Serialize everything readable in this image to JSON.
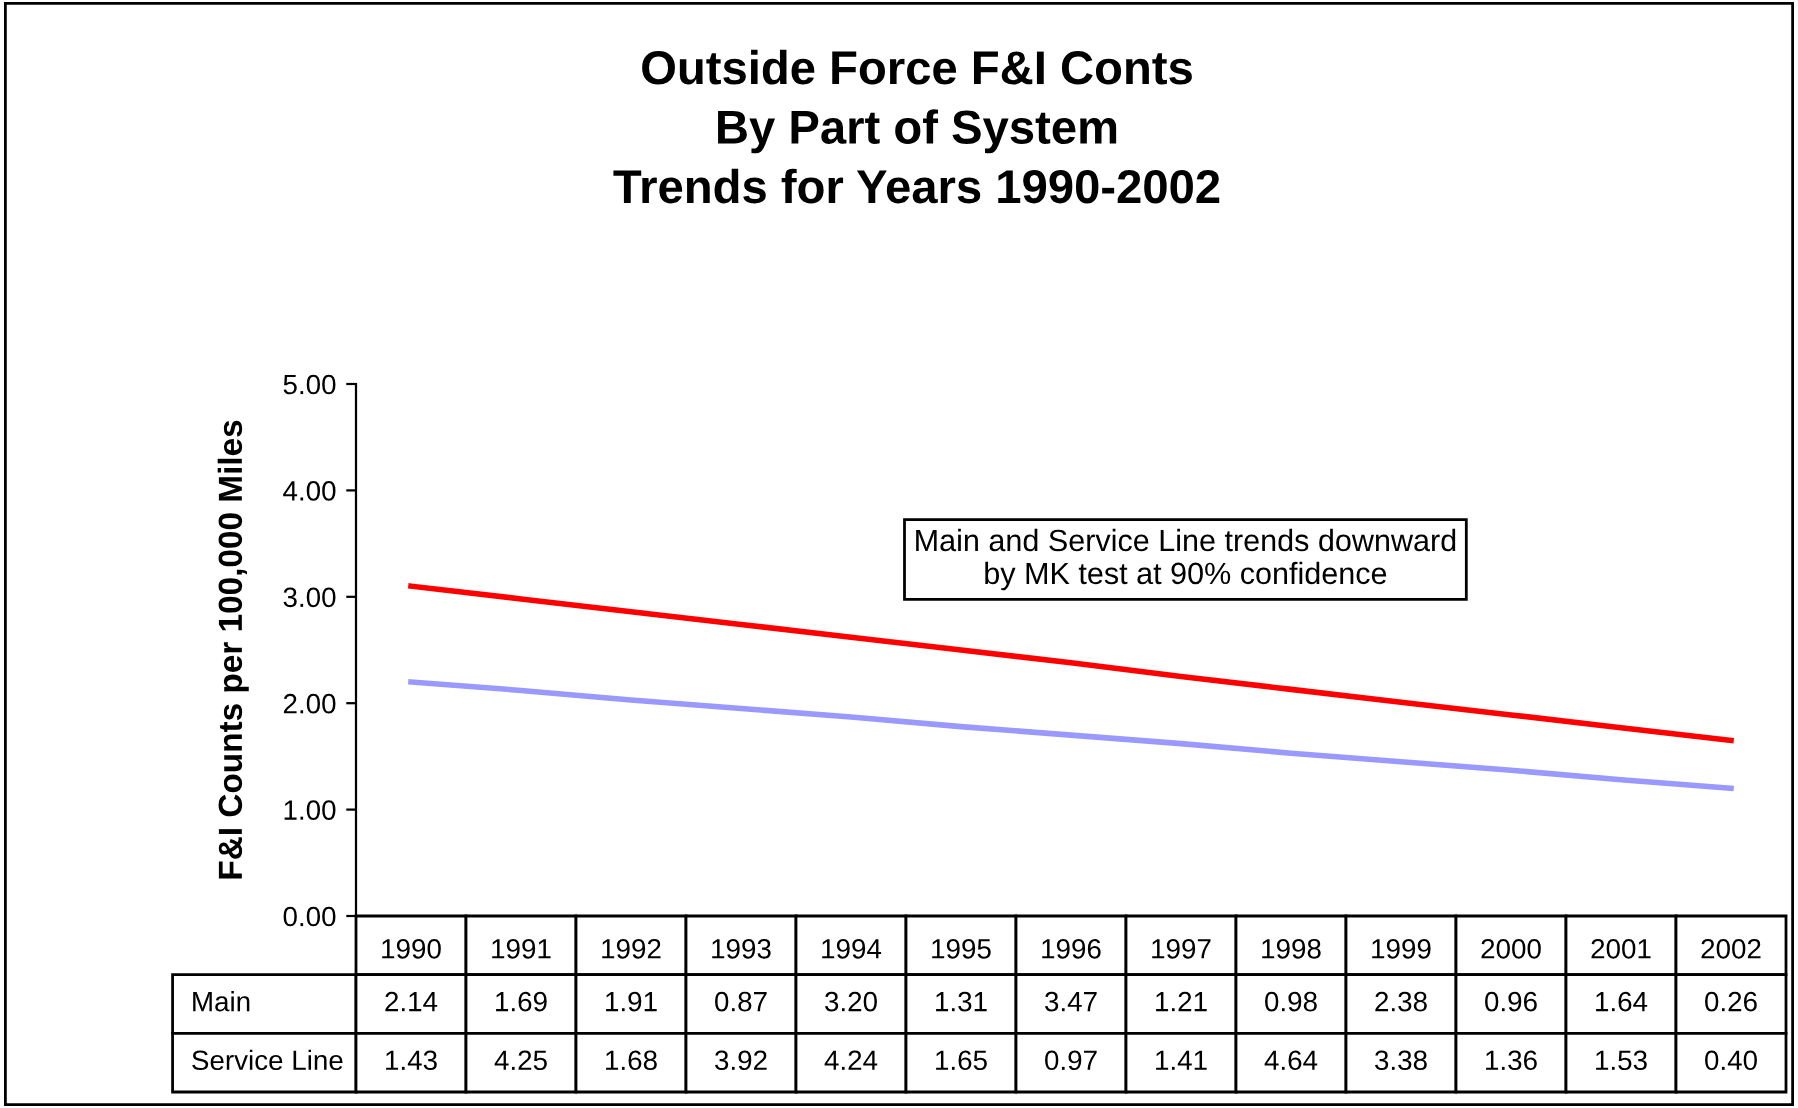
{
  "chart_data": {
    "type": "line",
    "title": "Outside Force F&I Conts\nBy Part of System\nTrends for Years 1990-2002",
    "ylabel": "F&I Counts per 100,000 Miles",
    "categories": [
      "1990",
      "1991",
      "1992",
      "1993",
      "1994",
      "1995",
      "1996",
      "1997",
      "1998",
      "1999",
      "2000",
      "2001",
      "2002"
    ],
    "series": [
      {
        "color": "#ff0000",
        "values": [
          3.1,
          2.98,
          2.86,
          2.74,
          2.62,
          2.5,
          2.38,
          2.25,
          2.13,
          2.01,
          1.89,
          1.77,
          1.65
        ]
      },
      {
        "color": "#9999ff",
        "values": [
          2.2,
          2.12,
          2.03,
          1.95,
          1.87,
          1.78,
          1.7,
          1.62,
          1.53,
          1.45,
          1.37,
          1.28,
          1.2
        ]
      }
    ],
    "ylim": [
      0,
      5
    ],
    "yticks": [
      {
        "value": 0,
        "label": "0.00"
      },
      {
        "value": 1,
        "label": "1.00"
      },
      {
        "value": 2,
        "label": "2.00"
      },
      {
        "value": 3,
        "label": "3.00"
      },
      {
        "value": 4,
        "label": "4.00"
      },
      {
        "value": 5,
        "label": "5.00"
      }
    ],
    "annotations": [
      "Main and Service Line trends downward\nby MK test at 90% confidence",
      "Main",
      "2.14",
      "1.69",
      "1.91",
      "0.87",
      "3.20",
      "1.31",
      "3.47",
      "1.21",
      "0.98",
      "2.38",
      "0.96",
      "1.64",
      "0.26",
      "Service Line",
      "1.43",
      "4.25",
      "1.68",
      "3.92",
      "4.24",
      "1.65",
      "0.97",
      "1.41",
      "4.64",
      "3.38",
      "1.36",
      "1.53",
      "0.40"
    ]
  }
}
